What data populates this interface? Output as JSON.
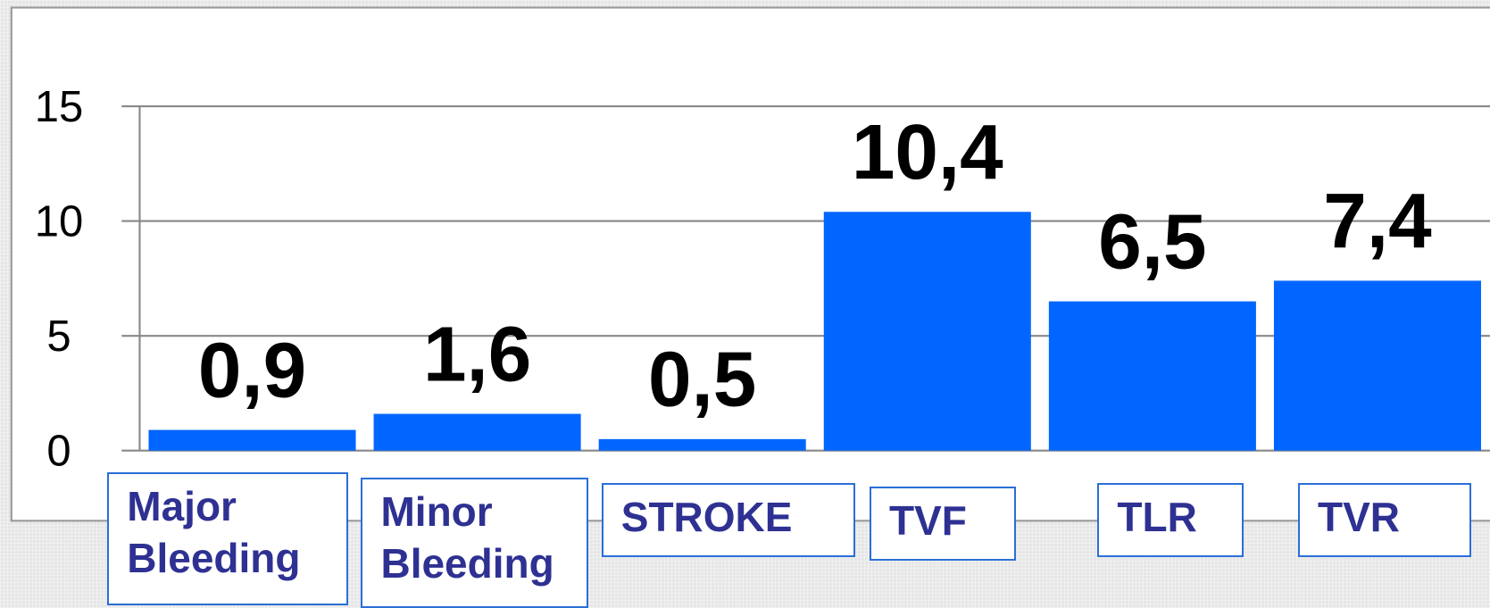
{
  "chart_data": {
    "type": "bar",
    "categories": [
      "Major Bleeding",
      "Minor Bleeding",
      "STROKE",
      "TVF",
      "TLR",
      "TVR"
    ],
    "values": [
      0.9,
      1.6,
      0.5,
      10.4,
      6.5,
      7.4
    ],
    "value_labels": [
      "0,9",
      "1,6",
      "0,5",
      "10,4",
      "6,5",
      "7,4"
    ],
    "color": "#0066ff",
    "ylim": [
      0,
      15
    ],
    "yticks": [
      0,
      5,
      10,
      15
    ],
    "grid": true
  }
}
